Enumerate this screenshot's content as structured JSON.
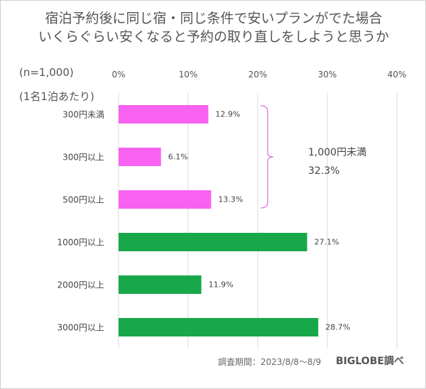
{
  "chart_data": {
    "type": "bar",
    "orientation": "horizontal",
    "title": "宿泊予約後に同じ宿・同じ条件で安いプランがでた場合\nいくらぐらい安くなると予約の取り直しをしようと思うか",
    "title_lines": [
      "宿泊予約後に同じ宿・同じ条件で安いプランがでた場合",
      "いくらぐらい安くなると予約の取り直しをしようと思うか"
    ],
    "notes": [
      "(n=1,000)",
      "(1名1泊あたり)"
    ],
    "categories": [
      "300円未満",
      "300円以上",
      "500円以上",
      "1000円以上",
      "2000円以上",
      "3000円以上"
    ],
    "values": [
      12.9,
      6.1,
      13.3,
      27.1,
      11.9,
      28.7
    ],
    "value_labels": [
      "12.9%",
      "6.1%",
      "13.3%",
      "27.1%",
      "11.9%",
      "28.7%"
    ],
    "bar_colors": [
      "#f762f0",
      "#f762f0",
      "#f762f0",
      "#18a84a",
      "#18a84a",
      "#18a84a"
    ],
    "xlim": [
      0,
      40
    ],
    "xticks": [
      "0%",
      "10%",
      "20%",
      "30%",
      "40%"
    ],
    "grid": true,
    "annotation": {
      "label": "1,000円未満",
      "value": "32.3%",
      "brace_color": "#e070e0"
    },
    "footer": "調査期間：2023/8/8〜8/9",
    "brand": "BIGLOBE調べ"
  }
}
